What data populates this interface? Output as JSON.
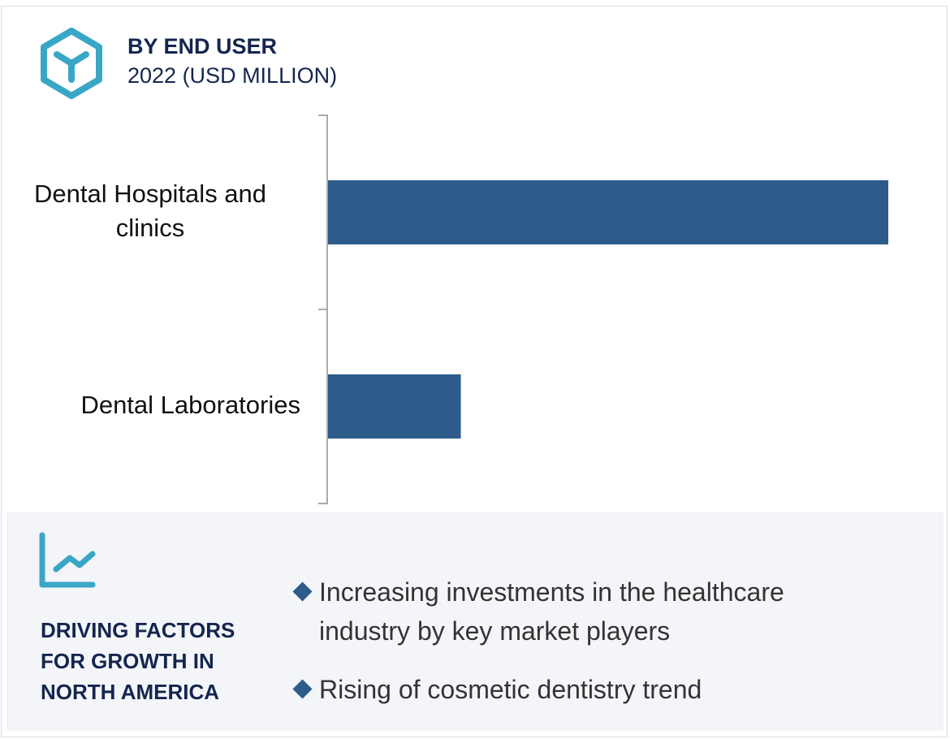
{
  "header": {
    "title": "BY END USER",
    "subtitle": "2022 (USD MILLION)",
    "icon": "hexagon-y-icon"
  },
  "chart_data": {
    "type": "bar",
    "orientation": "horizontal",
    "categories": [
      "Dental Hospitals and clinics",
      "Dental Laboratories"
    ],
    "values": [
      100,
      23.7
    ],
    "value_note_unit": "relative (no axis values printed)",
    "bar_color": "#2d5b8a",
    "grid": false
  },
  "footer": {
    "icon": "line-chart-icon",
    "heading": "DRIVING FACTORS\nFOR GROWTH IN\nNORTH AMERICA",
    "bullets": [
      "Increasing investments in the healthcare industry by key market players",
      "Rising of cosmetic dentistry trend"
    ]
  }
}
